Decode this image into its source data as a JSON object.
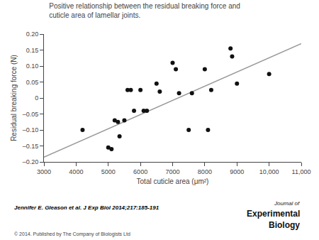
{
  "chart_data": {
    "type": "scatter",
    "title": "Positive relationship between the residual breaking force and cuticle area of lamellar joints.",
    "x_label": "Total cuticle area (μm²)",
    "y_label": "Residual breaking force (N)",
    "xlim": [
      3000,
      11000
    ],
    "ylim": [
      -0.2,
      0.2
    ],
    "xticks": [
      3000,
      4000,
      5000,
      6000,
      7000,
      8000,
      9000,
      {
        "value": 10000,
        "label": "10,000"
      },
      {
        "value": 11000,
        "label": "11,000"
      }
    ],
    "yticks": [
      {
        "value": -0.2,
        "label": "–0.20"
      },
      {
        "value": -0.15,
        "label": "–0.15"
      },
      {
        "value": -0.1,
        "label": "–0.10"
      },
      {
        "value": -0.05,
        "label": "–0.05"
      },
      0,
      0.05,
      {
        "value": 0.1,
        "label": "0.10"
      },
      0.15,
      {
        "value": 0.2,
        "label": "0.20"
      }
    ],
    "grid": false,
    "series": [
      {
        "type": "line",
        "color": "#999999",
        "x": [
          3000,
          11000
        ],
        "values": [
          -0.185,
          0.17
        ]
      },
      {
        "type": "scatter",
        "color": "#111111",
        "x": [
          4200,
          5000,
          5100,
          5200,
          5300,
          5350,
          5500,
          5600,
          5700,
          5800,
          6000,
          6100,
          6200,
          6500,
          6600,
          7000,
          7100,
          7200,
          7500,
          7600,
          8000,
          8100,
          8200,
          8800,
          8850,
          9000,
          10000
        ],
        "values": [
          -0.1,
          -0.155,
          -0.16,
          -0.07,
          -0.075,
          -0.12,
          -0.07,
          0.025,
          0.025,
          -0.04,
          0.025,
          -0.04,
          -0.04,
          0.045,
          0.02,
          0.11,
          0.09,
          0.015,
          -0.1,
          0.015,
          0.09,
          -0.1,
          0.025,
          0.155,
          0.13,
          0.045,
          0.075
        ]
      }
    ],
    "annotations": [
      "Jennifer E. Gleason et al. J Exp Biol 2014;217:185-191",
      "© 2014. Published by The Company of Biologists Ltd",
      "Journal of",
      "Experimental",
      "Biology"
    ]
  }
}
